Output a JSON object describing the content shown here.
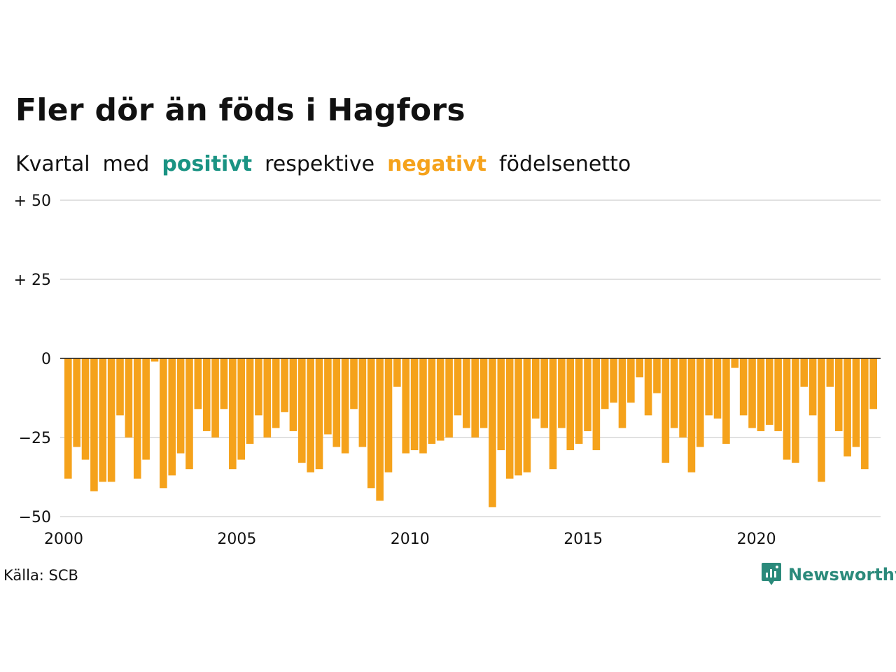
{
  "title": "Fler dör än föds i Hagfors",
  "subtitle": {
    "w1": "Kvartal",
    "w2": "med",
    "positive": "positivt",
    "w3": "respektive",
    "negative": "negativt",
    "w4": "födelsenetto"
  },
  "source": "Källa: SCB",
  "brand": "Newsworthy",
  "colors": {
    "positive": "#1a9383",
    "negative": "#f5a21b",
    "grid": "#e1e1e1",
    "axis": "#111111"
  },
  "chart_data": {
    "type": "bar",
    "title": "Fler dör än föds i Hagfors",
    "xlabel": "",
    "ylabel": "",
    "ylim": [
      -50,
      50
    ],
    "y_ticks": [
      {
        "value": 50,
        "label": "+ 50"
      },
      {
        "value": 25,
        "label": "+ 25"
      },
      {
        "value": 0,
        "label": "0"
      },
      {
        "value": -25,
        "label": "−25"
      },
      {
        "value": -50,
        "label": "−50"
      }
    ],
    "x_ticks": [
      "2000",
      "2005",
      "2010",
      "2015",
      "2020"
    ],
    "grid": true,
    "x_range": [
      "2000 Q1",
      "2023 Q2"
    ],
    "categories": [
      "2000 Q1",
      "2000 Q2",
      "2000 Q3",
      "2000 Q4",
      "2001 Q1",
      "2001 Q2",
      "2001 Q3",
      "2001 Q4",
      "2002 Q1",
      "2002 Q2",
      "2002 Q3",
      "2002 Q4",
      "2003 Q1",
      "2003 Q2",
      "2003 Q3",
      "2003 Q4",
      "2004 Q1",
      "2004 Q2",
      "2004 Q3",
      "2004 Q4",
      "2005 Q1",
      "2005 Q2",
      "2005 Q3",
      "2005 Q4",
      "2006 Q1",
      "2006 Q2",
      "2006 Q3",
      "2006 Q4",
      "2007 Q1",
      "2007 Q2",
      "2007 Q3",
      "2007 Q4",
      "2008 Q1",
      "2008 Q2",
      "2008 Q3",
      "2008 Q4",
      "2009 Q1",
      "2009 Q2",
      "2009 Q3",
      "2009 Q4",
      "2010 Q1",
      "2010 Q2",
      "2010 Q3",
      "2010 Q4",
      "2011 Q1",
      "2011 Q2",
      "2011 Q3",
      "2011 Q4",
      "2012 Q1",
      "2012 Q2",
      "2012 Q3",
      "2012 Q4",
      "2013 Q1",
      "2013 Q2",
      "2013 Q3",
      "2013 Q4",
      "2014 Q1",
      "2014 Q2",
      "2014 Q3",
      "2014 Q4",
      "2015 Q1",
      "2015 Q2",
      "2015 Q3",
      "2015 Q4",
      "2016 Q1",
      "2016 Q2",
      "2016 Q3",
      "2016 Q4",
      "2017 Q1",
      "2017 Q2",
      "2017 Q3",
      "2017 Q4",
      "2018 Q1",
      "2018 Q2",
      "2018 Q3",
      "2018 Q4",
      "2019 Q1",
      "2019 Q2",
      "2019 Q3",
      "2019 Q4",
      "2020 Q1",
      "2020 Q2",
      "2020 Q3",
      "2020 Q4",
      "2021 Q1",
      "2021 Q2",
      "2021 Q3",
      "2021 Q4",
      "2022 Q1",
      "2022 Q2",
      "2022 Q3",
      "2022 Q4",
      "2023 Q1",
      "2023 Q2"
    ],
    "values": [
      -38,
      -28,
      -32,
      -42,
      -39,
      -39,
      -18,
      -25,
      -38,
      -32,
      -1,
      -41,
      -37,
      -30,
      -35,
      -16,
      -23,
      -25,
      -16,
      -35,
      -32,
      -27,
      -18,
      -25,
      -22,
      -17,
      -23,
      -33,
      -36,
      -35,
      -24,
      -28,
      -30,
      -16,
      -28,
      -41,
      -45,
      -36,
      -9,
      -30,
      -29,
      -30,
      -27,
      -26,
      -25,
      -18,
      -22,
      -25,
      -22,
      -47,
      -29,
      -38,
      -37,
      -36,
      -19,
      -22,
      -35,
      -22,
      -29,
      -27,
      -23,
      -29,
      -16,
      -14,
      -22,
      -14,
      -6,
      -18,
      -11,
      -33,
      -22,
      -25,
      -36,
      -28,
      -18,
      -19,
      -27,
      -3,
      -18,
      -22,
      -23,
      -21,
      -23,
      -32,
      -33,
      -9,
      -18,
      -39,
      -9,
      -23,
      -31,
      -28,
      -35,
      -16
    ]
  }
}
